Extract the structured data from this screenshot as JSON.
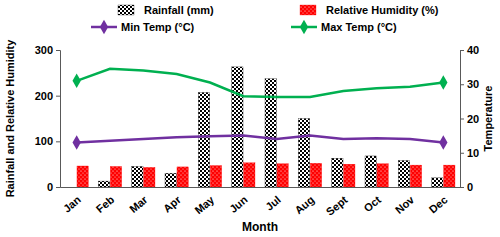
{
  "chart_data": {
    "type": "bar",
    "x_label": "Month",
    "y_label": "Rainfall and Relative Humidity",
    "y2_label": "Temperature",
    "categories": [
      "Jan",
      "Feb",
      "Mar",
      "Apr",
      "May",
      "Jun",
      "Jul",
      "Aug",
      "Sept",
      "Oct",
      "Nov",
      "Dec"
    ],
    "ylim": [
      0,
      300
    ],
    "yticks": [
      0,
      100,
      200,
      300
    ],
    "y2lim": [
      0,
      40
    ],
    "y2ticks": [
      0,
      10,
      20,
      30,
      40
    ],
    "grid": false,
    "legend": "top",
    "series": [
      {
        "name": "Rainfall (mm)",
        "type": "bar",
        "color": "#000000",
        "values": [
          0,
          13,
          45,
          30,
          207,
          263,
          237,
          150,
          63,
          68,
          58,
          20
        ]
      },
      {
        "name": "Relative Humidity (%)",
        "type": "bar",
        "color": "#ff0000",
        "values": [
          46,
          45,
          43,
          44,
          47,
          53,
          51,
          52,
          50,
          51,
          48,
          48
        ]
      },
      {
        "name": "Min Temp (°C)",
        "type": "line",
        "axis": "y2",
        "color": "#7030a0",
        "marker": "diamond",
        "values": [
          13,
          13.5,
          14,
          14.5,
          14.8,
          15,
          14,
          15,
          14,
          14.2,
          14,
          13
        ]
      },
      {
        "name": "Max Temp (°C)",
        "type": "line",
        "axis": "y2",
        "color": "#00b050",
        "marker": "diamond",
        "values": [
          31,
          34.5,
          34,
          33,
          30.5,
          26.5,
          26.3,
          26.3,
          28,
          28.8,
          29.3,
          30.5
        ]
      }
    ]
  }
}
